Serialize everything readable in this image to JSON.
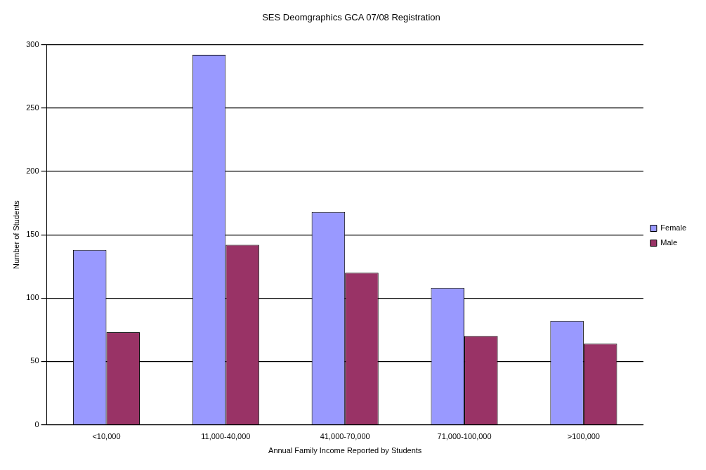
{
  "chart_data": {
    "type": "bar",
    "title": "SES Deomgraphics GCA 07/08 Registration",
    "xlabel": "Annual Family Income Reported by Students",
    "ylabel": "Number of Students",
    "categories": [
      "<10,000",
      "11,000-40,000",
      "41,000-70,000",
      "71,000-100,000",
      ">100,000"
    ],
    "series": [
      {
        "name": "Female",
        "color": "#9999ff",
        "values": [
          138,
          292,
          168,
          108,
          82
        ]
      },
      {
        "name": "Male",
        "color": "#993366",
        "values": [
          73,
          142,
          120,
          70,
          64
        ]
      }
    ],
    "ylim": [
      0,
      300
    ],
    "yticks": [
      0,
      50,
      100,
      150,
      200,
      250,
      300
    ],
    "grid": "y",
    "legend": "right"
  }
}
